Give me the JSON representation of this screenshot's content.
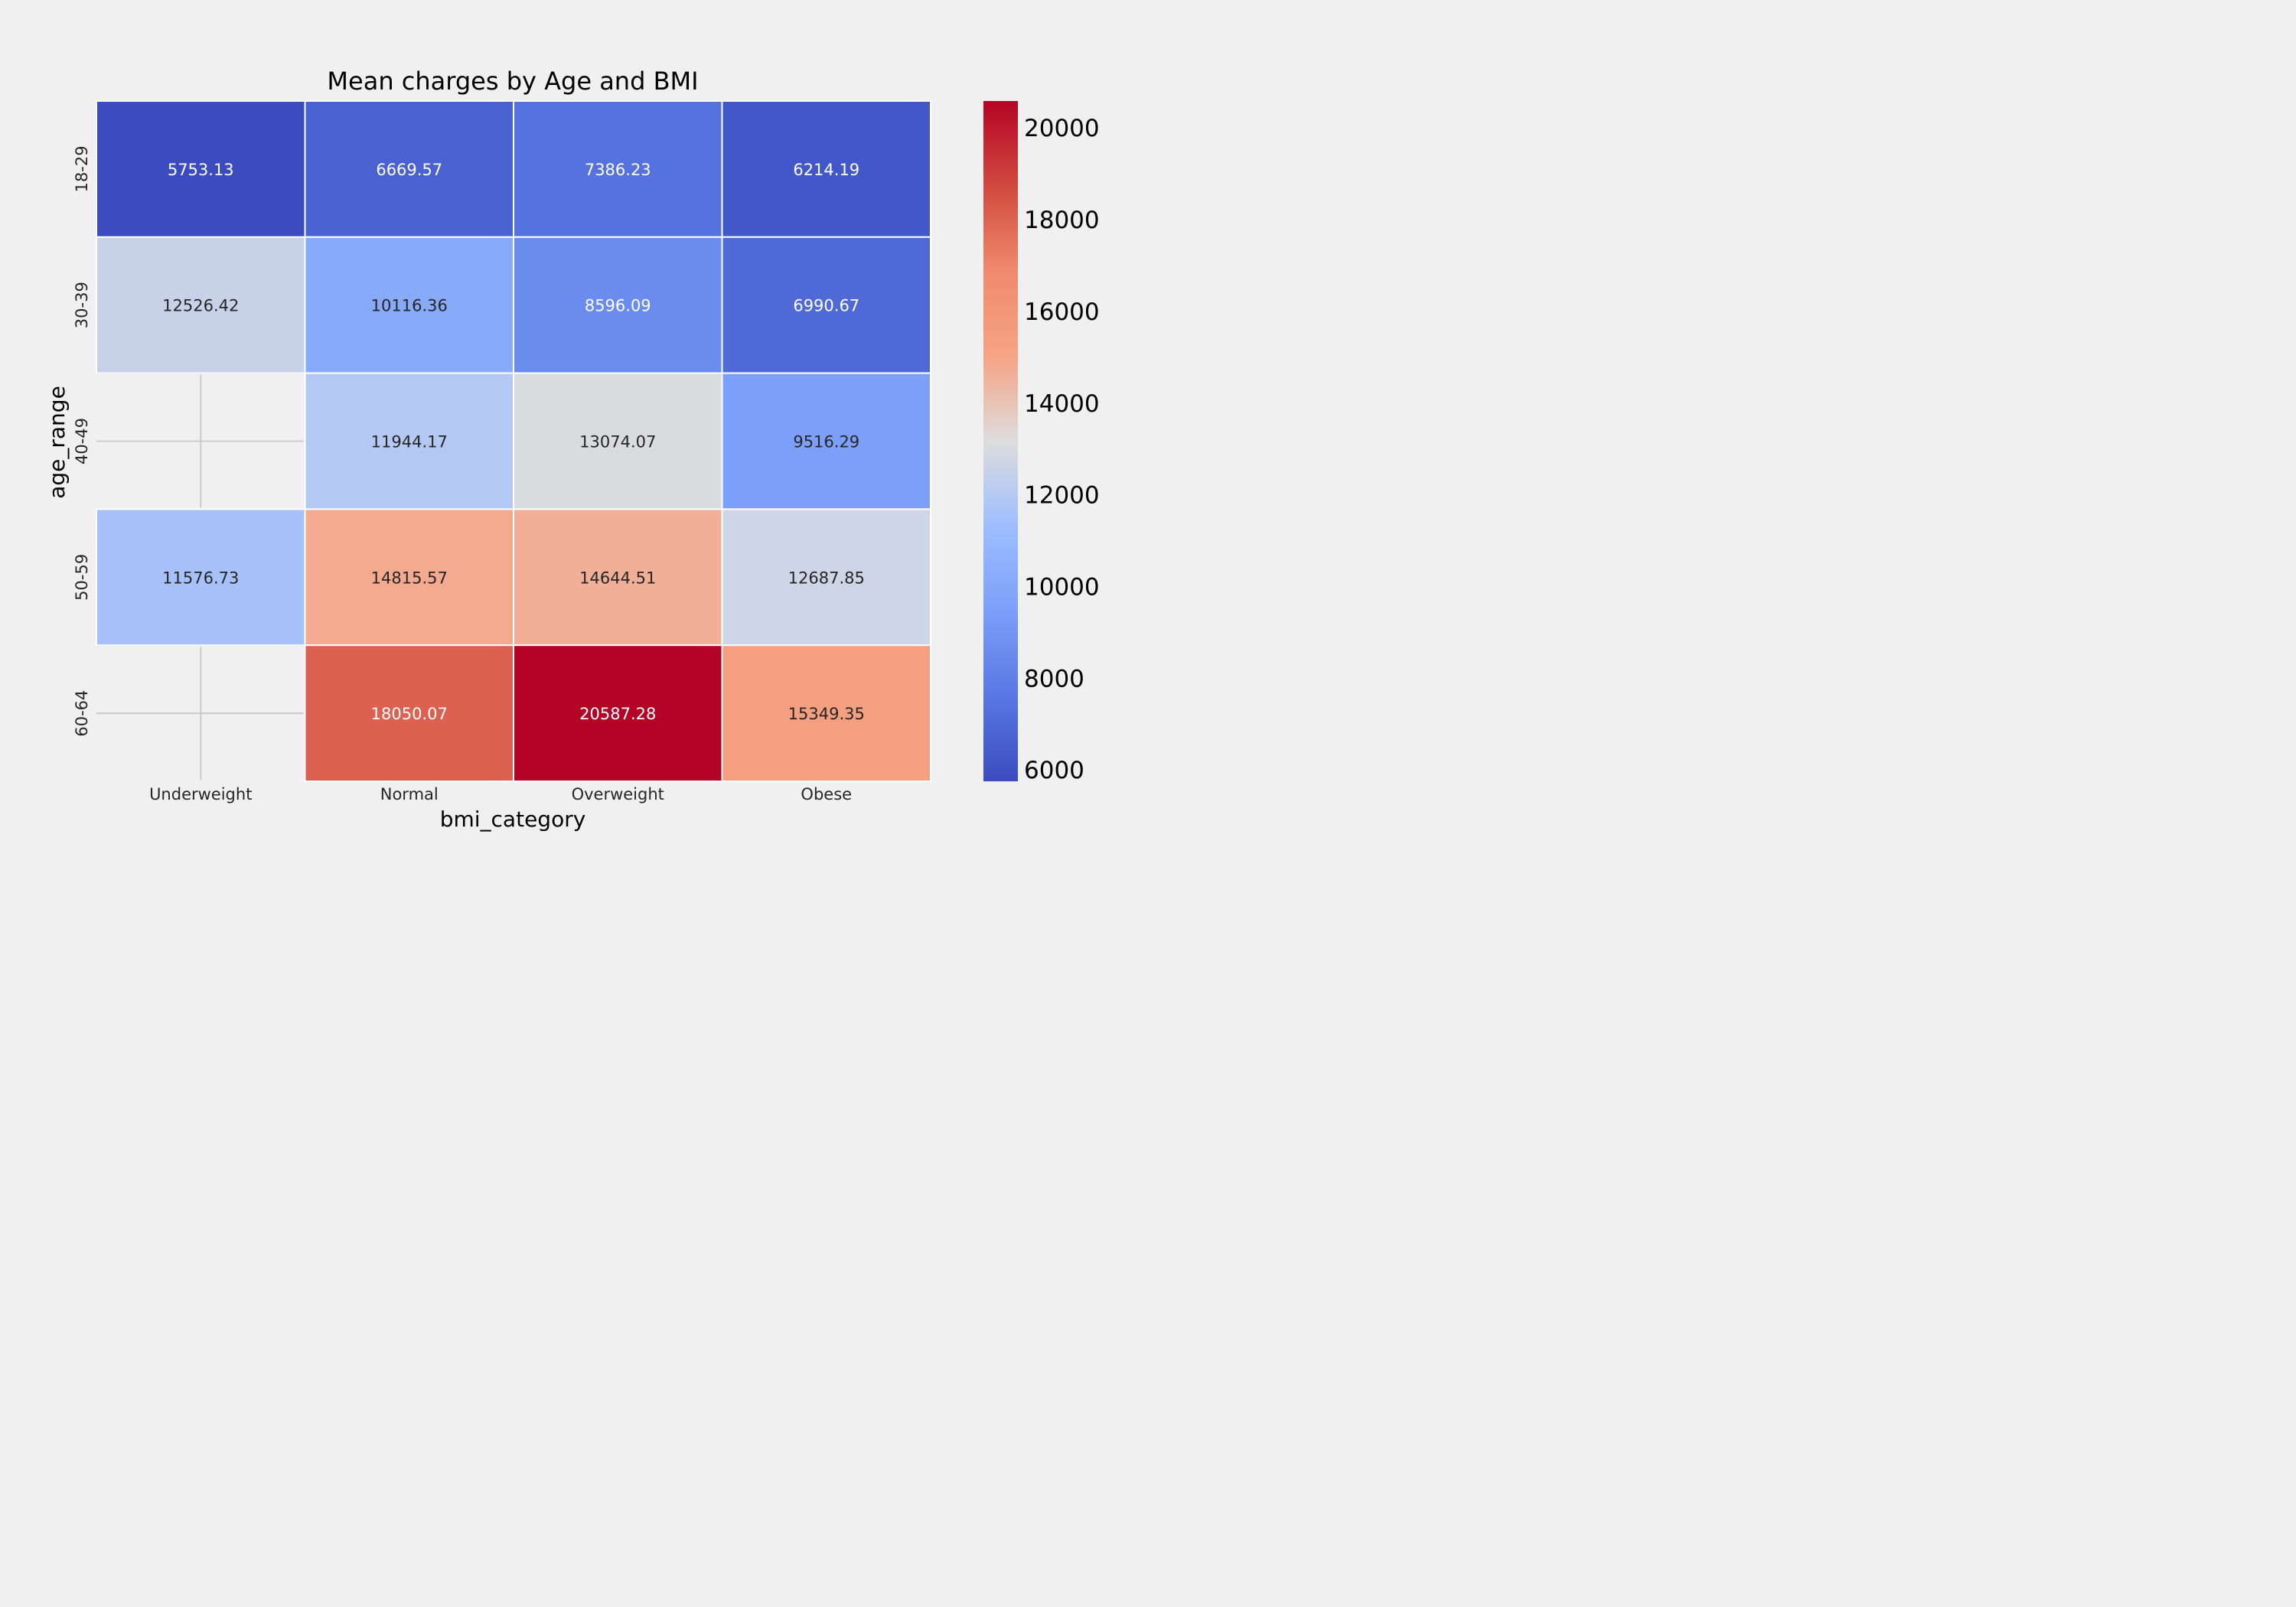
{
  "chart_data": {
    "type": "heatmap",
    "title": "Mean charges by Age and BMI",
    "xlabel": "bmi_category",
    "ylabel": "age_range",
    "x_categories": [
      "Underweight",
      "Normal",
      "Overweight",
      "Obese"
    ],
    "y_categories": [
      "18-29",
      "30-39",
      "40-49",
      "50-59",
      "60-64"
    ],
    "values": [
      [
        5753.13,
        6669.57,
        7386.23,
        6214.19
      ],
      [
        12526.42,
        10116.36,
        8596.09,
        6990.67
      ],
      [
        null,
        11944.17,
        13074.07,
        9516.29
      ],
      [
        11576.73,
        14815.57,
        14644.51,
        12687.85
      ],
      [
        null,
        18050.07,
        20587.28,
        15349.35
      ]
    ],
    "value_labels": [
      [
        "5753.13",
        "6669.57",
        "7386.23",
        "6214.19"
      ],
      [
        "12526.42",
        "10116.36",
        "8596.09",
        "6990.67"
      ],
      [
        "",
        "11944.17",
        "13074.07",
        "9516.29"
      ],
      [
        "11576.73",
        "14815.57",
        "14644.51",
        "12687.85"
      ],
      [
        "",
        "18050.07",
        "20587.28",
        "15349.35"
      ]
    ],
    "colormap": "coolwarm",
    "color_range": [
      5753.13,
      20587.28
    ],
    "colorbar_ticks": [
      6000,
      8000,
      10000,
      12000,
      14000,
      16000,
      18000,
      20000
    ],
    "colorbar_tick_labels": [
      "6000",
      "8000",
      "10000",
      "12000",
      "14000",
      "16000",
      "18000",
      "20000"
    ],
    "missing_cell_style": "blank",
    "grid": true,
    "colorbar_position": "right"
  }
}
